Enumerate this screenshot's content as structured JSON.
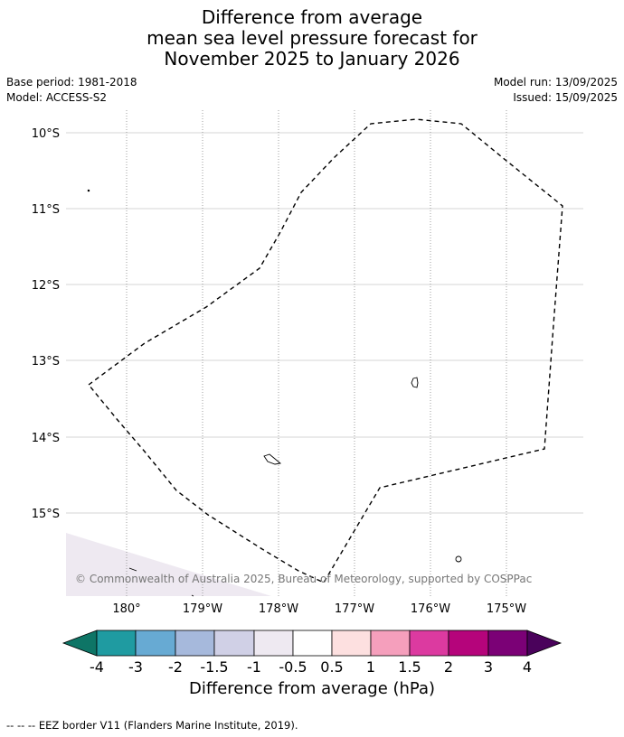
{
  "title": {
    "line1": "Difference from average",
    "line2": "mean sea level pressure forecast for",
    "line3": "November 2025 to January 2026"
  },
  "meta": {
    "base_period": "Base period: 1981-2018",
    "model": "Model: ACCESS-S2",
    "model_run": "Model run: 13/09/2025",
    "issued": "Issued: 15/09/2025"
  },
  "map": {
    "lat_labels": [
      "10°S",
      "11°S",
      "12°S",
      "13°S",
      "14°S",
      "15°S"
    ],
    "lon_labels": [
      "180°",
      "179°W",
      "178°W",
      "177°W",
      "176°W",
      "175°W"
    ],
    "copyright": "© Commonwealth of Australia 2025, Bureau of Meteorology, supported by COSPPac",
    "anomaly_shading": {
      "range": "-1 to -0.5",
      "color": "#eee9f1"
    }
  },
  "colorbar": {
    "label": "Difference from average (hPa)",
    "ticks": [
      "-4",
      "-3",
      "-2",
      "-1.5",
      "-1",
      "-0.5",
      "0.5",
      "1",
      "1.5",
      "2",
      "3",
      "4"
    ],
    "colors": [
      "#0e7566",
      "#1f9ba1",
      "#67aad3",
      "#a6b9dc",
      "#d0d0e6",
      "#eee9f1",
      "#ffffff",
      "#fde0e0",
      "#f59fbc",
      "#dc3aa0",
      "#b5047b",
      "#7b0176",
      "#4a025b"
    ]
  },
  "footer": "--  --  -- EEZ border V11 (Flanders Marine Institute, 2019)."
}
